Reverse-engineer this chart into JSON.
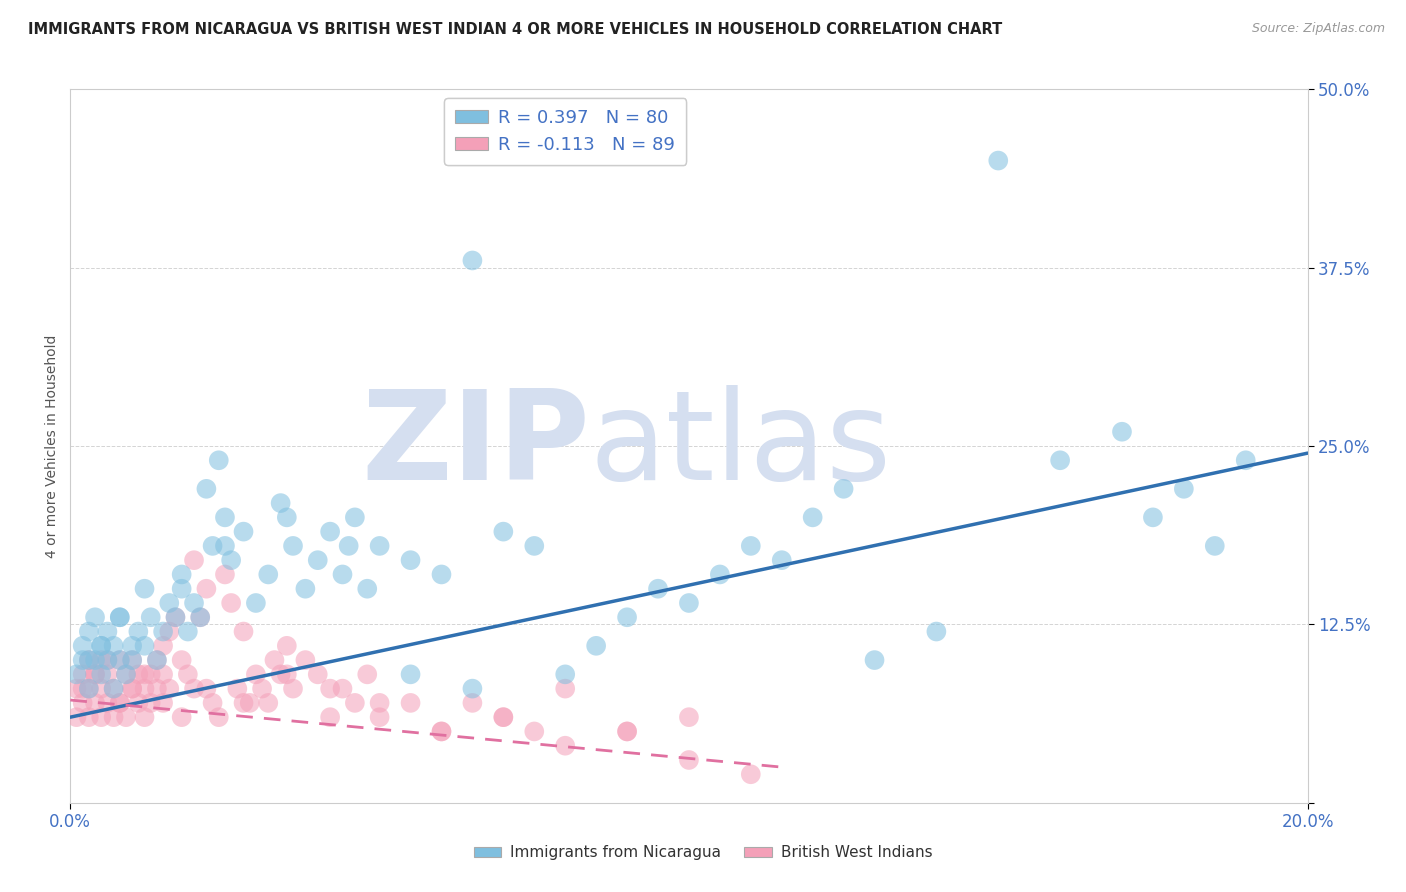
{
  "title": "IMMIGRANTS FROM NICARAGUA VS BRITISH WEST INDIAN 4 OR MORE VEHICLES IN HOUSEHOLD CORRELATION CHART",
  "source": "Source: ZipAtlas.com",
  "legend_blue": "R = 0.397   N = 80",
  "legend_pink": "R = -0.113   N = 89",
  "legend_label_blue": "Immigrants from Nicaragua",
  "legend_label_pink": "British West Indians",
  "blue_color": "#7fbfdf",
  "pink_color": "#f4a0b8",
  "title_color": "#222222",
  "axis_label_color": "#4472c4",
  "watermark_color": "#d5dff0",
  "watermark_text": "ZIPatlas",
  "blue_scatter_x": [
    0.001,
    0.002,
    0.002,
    0.003,
    0.003,
    0.004,
    0.004,
    0.005,
    0.005,
    0.006,
    0.006,
    0.007,
    0.007,
    0.008,
    0.008,
    0.009,
    0.01,
    0.01,
    0.011,
    0.012,
    0.013,
    0.014,
    0.015,
    0.016,
    0.017,
    0.018,
    0.019,
    0.02,
    0.021,
    0.022,
    0.023,
    0.024,
    0.025,
    0.026,
    0.028,
    0.03,
    0.032,
    0.034,
    0.036,
    0.038,
    0.04,
    0.042,
    0.044,
    0.046,
    0.048,
    0.05,
    0.055,
    0.06,
    0.065,
    0.07,
    0.075,
    0.08,
    0.085,
    0.09,
    0.095,
    0.1,
    0.105,
    0.11,
    0.115,
    0.12,
    0.125,
    0.13,
    0.14,
    0.15,
    0.16,
    0.17,
    0.175,
    0.18,
    0.185,
    0.19,
    0.003,
    0.005,
    0.008,
    0.012,
    0.018,
    0.025,
    0.035,
    0.045,
    0.055,
    0.065
  ],
  "blue_scatter_y": [
    0.09,
    0.11,
    0.1,
    0.12,
    0.08,
    0.1,
    0.13,
    0.09,
    0.11,
    0.1,
    0.12,
    0.08,
    0.11,
    0.1,
    0.13,
    0.09,
    0.11,
    0.1,
    0.12,
    0.11,
    0.13,
    0.1,
    0.12,
    0.14,
    0.13,
    0.15,
    0.12,
    0.14,
    0.13,
    0.22,
    0.18,
    0.24,
    0.2,
    0.17,
    0.19,
    0.14,
    0.16,
    0.21,
    0.18,
    0.15,
    0.17,
    0.19,
    0.16,
    0.2,
    0.15,
    0.18,
    0.17,
    0.16,
    0.38,
    0.19,
    0.18,
    0.09,
    0.11,
    0.13,
    0.15,
    0.14,
    0.16,
    0.18,
    0.17,
    0.2,
    0.22,
    0.1,
    0.12,
    0.45,
    0.24,
    0.26,
    0.2,
    0.22,
    0.18,
    0.24,
    0.1,
    0.11,
    0.13,
    0.15,
    0.16,
    0.18,
    0.2,
    0.18,
    0.09,
    0.08
  ],
  "pink_scatter_x": [
    0.001,
    0.001,
    0.002,
    0.002,
    0.003,
    0.003,
    0.003,
    0.004,
    0.004,
    0.005,
    0.005,
    0.005,
    0.006,
    0.006,
    0.007,
    0.007,
    0.008,
    0.008,
    0.009,
    0.009,
    0.01,
    0.01,
    0.011,
    0.011,
    0.012,
    0.012,
    0.013,
    0.013,
    0.014,
    0.014,
    0.015,
    0.015,
    0.016,
    0.016,
    0.017,
    0.018,
    0.019,
    0.02,
    0.02,
    0.021,
    0.022,
    0.023,
    0.024,
    0.025,
    0.026,
    0.027,
    0.028,
    0.029,
    0.03,
    0.031,
    0.032,
    0.033,
    0.034,
    0.035,
    0.036,
    0.038,
    0.04,
    0.042,
    0.044,
    0.046,
    0.048,
    0.05,
    0.055,
    0.06,
    0.065,
    0.07,
    0.075,
    0.08,
    0.09,
    0.1,
    0.002,
    0.004,
    0.006,
    0.008,
    0.01,
    0.012,
    0.015,
    0.018,
    0.022,
    0.028,
    0.035,
    0.042,
    0.05,
    0.06,
    0.07,
    0.08,
    0.09,
    0.1,
    0.11
  ],
  "pink_scatter_y": [
    0.08,
    0.06,
    0.09,
    0.07,
    0.08,
    0.1,
    0.06,
    0.09,
    0.07,
    0.08,
    0.1,
    0.06,
    0.09,
    0.07,
    0.08,
    0.06,
    0.1,
    0.07,
    0.09,
    0.06,
    0.08,
    0.1,
    0.07,
    0.09,
    0.08,
    0.06,
    0.09,
    0.07,
    0.1,
    0.08,
    0.11,
    0.09,
    0.12,
    0.08,
    0.13,
    0.1,
    0.09,
    0.17,
    0.08,
    0.13,
    0.15,
    0.07,
    0.06,
    0.16,
    0.14,
    0.08,
    0.12,
    0.07,
    0.09,
    0.08,
    0.07,
    0.1,
    0.09,
    0.11,
    0.08,
    0.1,
    0.09,
    0.06,
    0.08,
    0.07,
    0.09,
    0.06,
    0.07,
    0.05,
    0.07,
    0.06,
    0.05,
    0.08,
    0.05,
    0.06,
    0.08,
    0.09,
    0.1,
    0.07,
    0.08,
    0.09,
    0.07,
    0.06,
    0.08,
    0.07,
    0.09,
    0.08,
    0.07,
    0.05,
    0.06,
    0.04,
    0.05,
    0.03,
    0.02
  ],
  "blue_trend_x": [
    0.0,
    0.2
  ],
  "blue_trend_y": [
    0.06,
    0.245
  ],
  "pink_trend_x": [
    0.0,
    0.115
  ],
  "pink_trend_y": [
    0.072,
    0.025
  ],
  "xlim": [
    0.0,
    0.2
  ],
  "ylim": [
    0.0,
    0.5
  ],
  "xtick_positions": [
    0.0,
    0.2
  ],
  "xtick_labels": [
    "0.0%",
    "20.0%"
  ],
  "ytick_positions": [
    0.0,
    0.125,
    0.25,
    0.375,
    0.5
  ],
  "ytick_labels": [
    "",
    "12.5%",
    "25.0%",
    "37.5%",
    "50.0%"
  ],
  "grid_color": "#d0d0d0",
  "background_color": "#ffffff"
}
